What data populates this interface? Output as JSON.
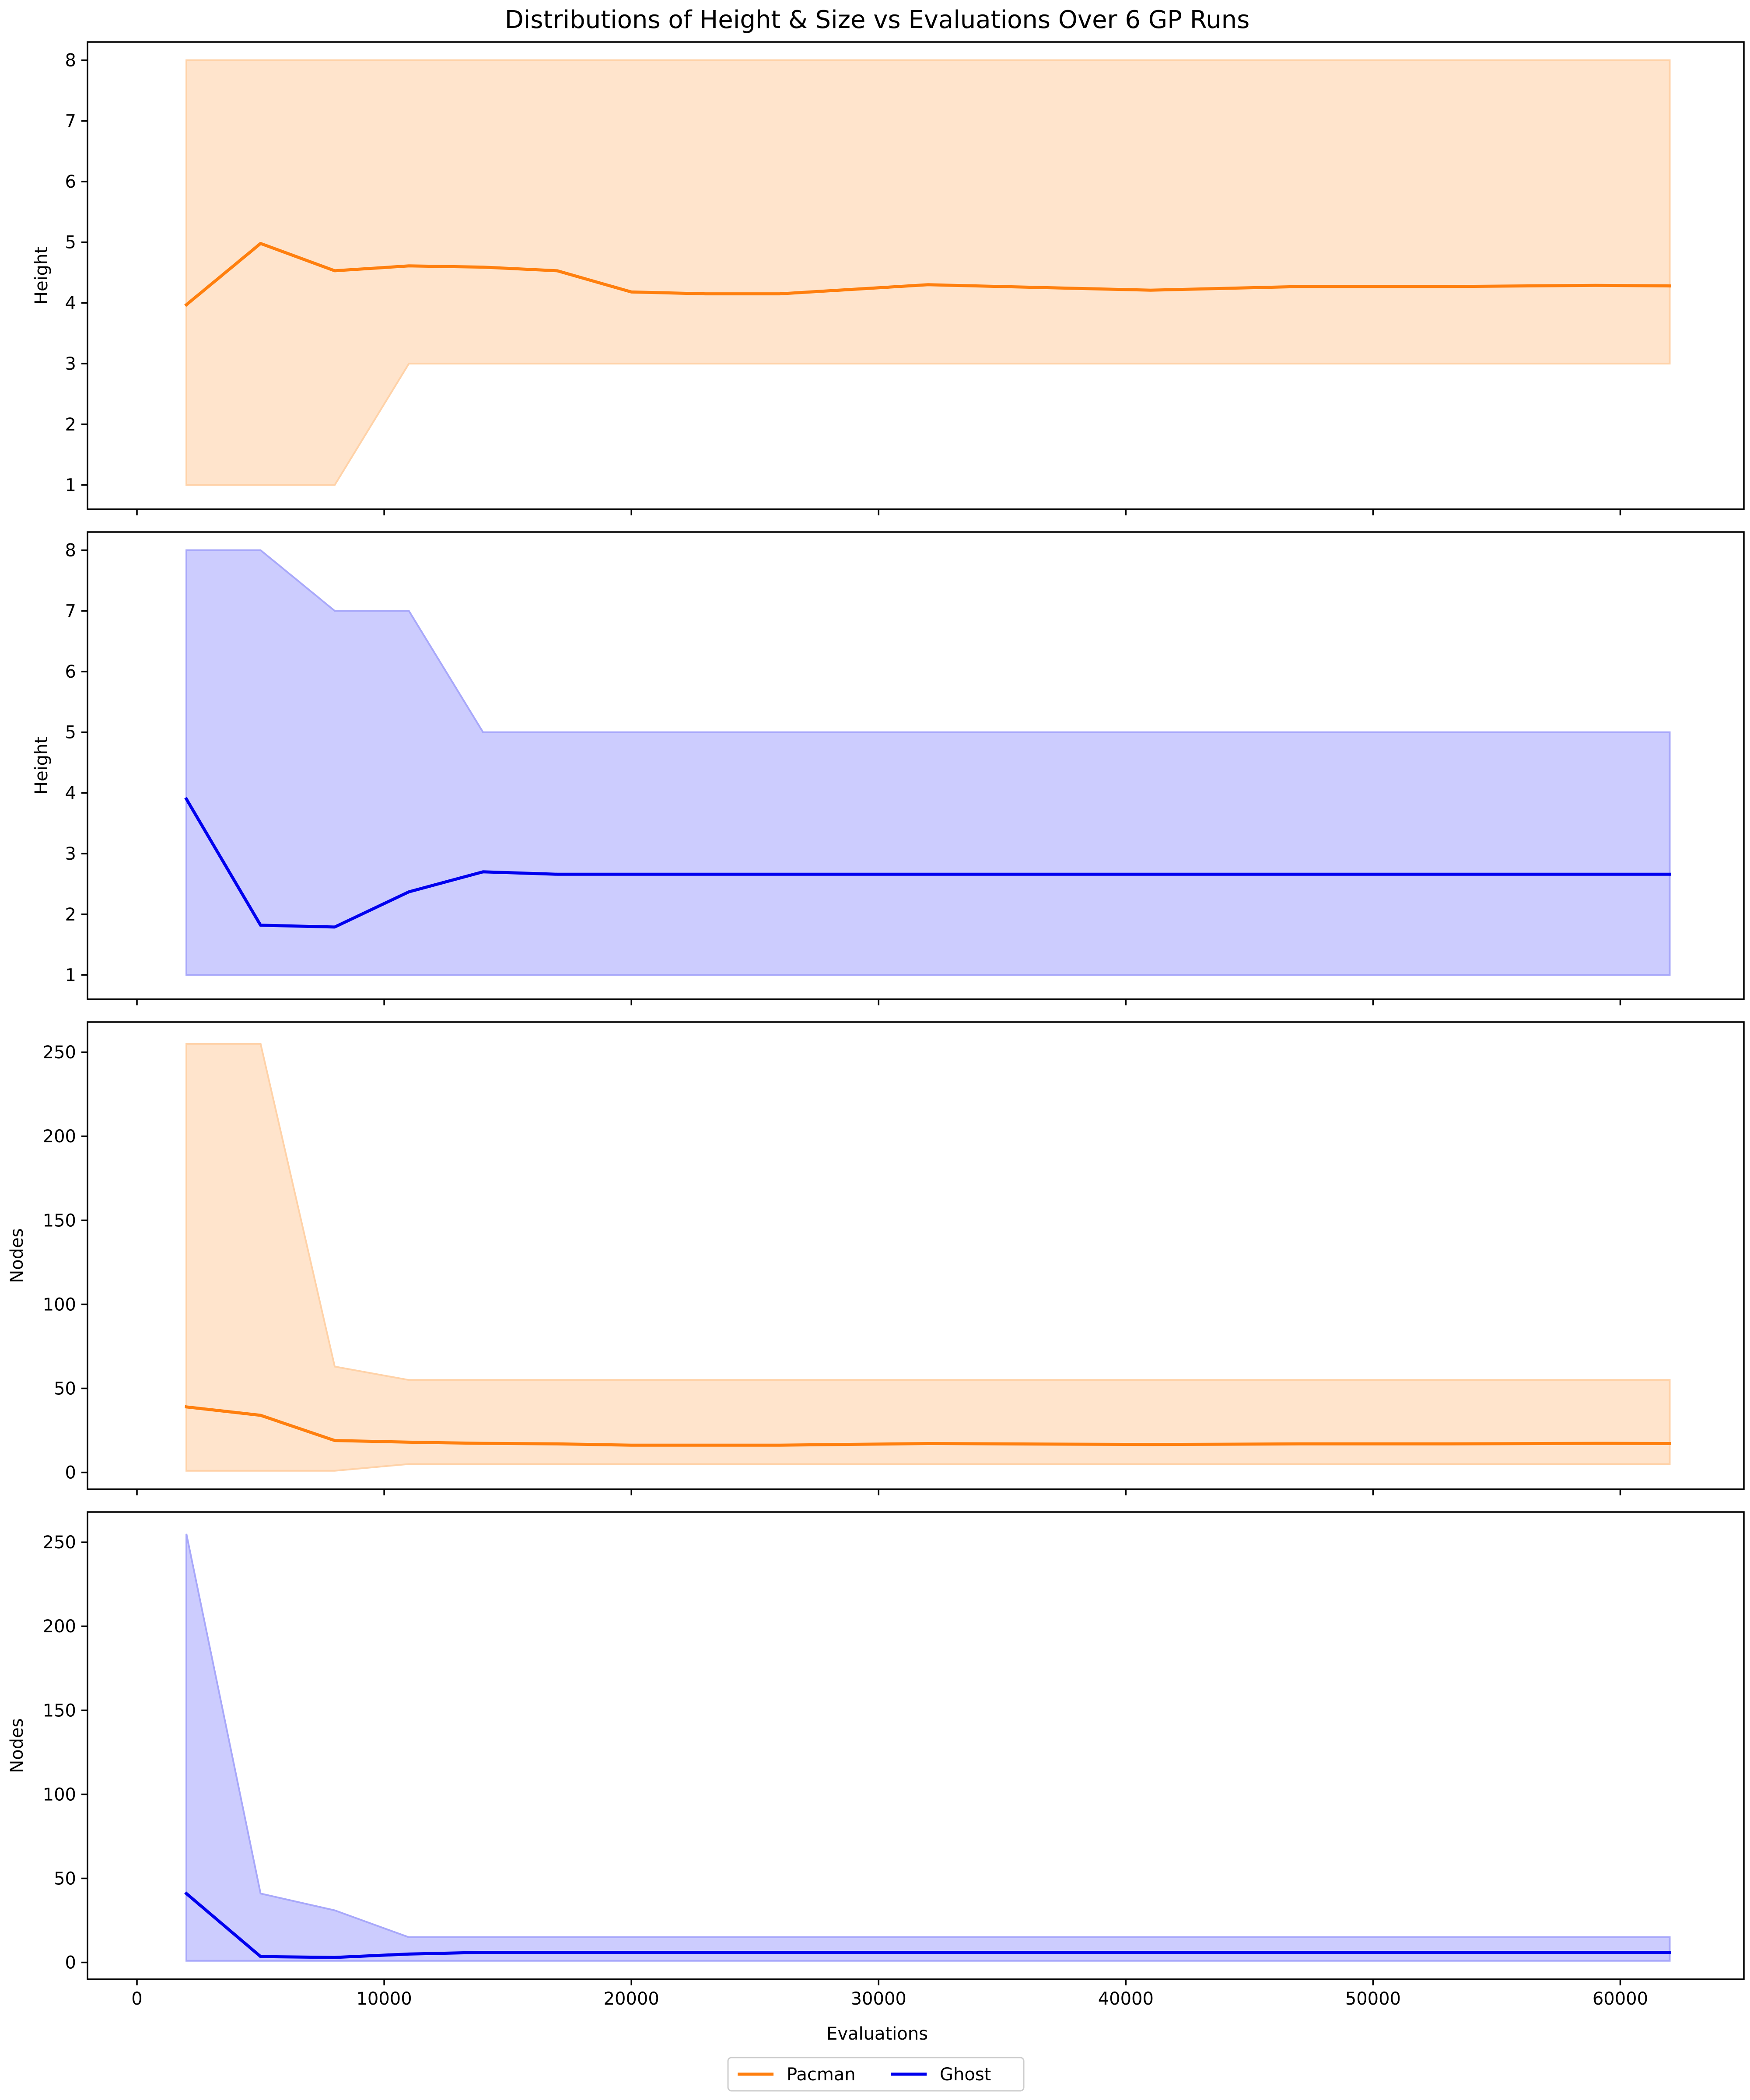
{
  "chart_data": {
    "type": "line",
    "title": "Distributions of Height & Size vs Evaluations Over 6 GP Runs",
    "xlabel": "Evaluations",
    "xlim": [
      -2000,
      65000
    ],
    "x_ticks": [
      0,
      10000,
      20000,
      30000,
      40000,
      50000,
      60000
    ],
    "legend": {
      "placement": "bottom-center",
      "entries": [
        {
          "name": "Pacman",
          "color": "#ff7f0e"
        },
        {
          "name": "Ghost",
          "color": "#0000ee"
        }
      ]
    },
    "panels": [
      {
        "ylabel": "Height",
        "ylim": [
          0.6,
          8.3
        ],
        "y_ticks": [
          1,
          2,
          3,
          4,
          5,
          6,
          7,
          8
        ],
        "series": "Pacman",
        "color": "#ff7f0e",
        "fill": "#ffe4cc",
        "fill_edge": "#ffd2a8",
        "x": [
          2000,
          5000,
          8000,
          11000,
          14000,
          17000,
          20000,
          23000,
          26000,
          32000,
          41000,
          47000,
          53000,
          59000,
          62000
        ],
        "mean": [
          3.97,
          4.98,
          4.53,
          4.61,
          4.59,
          4.53,
          4.18,
          4.15,
          4.15,
          4.3,
          4.21,
          4.27,
          4.27,
          4.29,
          4.28
        ],
        "min": [
          1,
          1,
          1,
          3,
          3,
          3,
          3,
          3,
          3,
          3,
          3,
          3,
          3,
          3,
          3
        ],
        "max": [
          8,
          8,
          8,
          8,
          8,
          8,
          8,
          8,
          8,
          8,
          8,
          8,
          8,
          8,
          8
        ]
      },
      {
        "ylabel": "Height",
        "ylim": [
          0.6,
          8.3
        ],
        "y_ticks": [
          1,
          2,
          3,
          4,
          5,
          6,
          7,
          8
        ],
        "series": "Ghost",
        "color": "#0000ee",
        "fill": "#ccccfe",
        "fill_edge": "#a8a8fa",
        "x": [
          2000,
          5000,
          8000,
          11000,
          14000,
          17000,
          20000,
          23000,
          26000,
          32000,
          41000,
          47000,
          53000,
          59000,
          62000
        ],
        "mean": [
          3.9,
          1.82,
          1.79,
          2.37,
          2.7,
          2.66,
          2.66,
          2.66,
          2.66,
          2.66,
          2.66,
          2.66,
          2.66,
          2.66,
          2.66
        ],
        "min": [
          1,
          1,
          1,
          1,
          1,
          1,
          1,
          1,
          1,
          1,
          1,
          1,
          1,
          1,
          1
        ],
        "max": [
          8,
          8,
          7,
          7,
          5,
          5,
          5,
          5,
          5,
          5,
          5,
          5,
          5,
          5,
          5
        ]
      },
      {
        "ylabel": "Nodes",
        "ylim": [
          -10,
          268
        ],
        "y_ticks": [
          0,
          50,
          100,
          150,
          200,
          250
        ],
        "series": "Pacman",
        "color": "#ff7f0e",
        "fill": "#ffe4cc",
        "fill_edge": "#ffd2a8",
        "x": [
          2000,
          5000,
          8000,
          11000,
          14000,
          17000,
          20000,
          23000,
          26000,
          32000,
          41000,
          47000,
          53000,
          59000,
          62000
        ],
        "mean": [
          39,
          34,
          19,
          18,
          17.3,
          17,
          16.2,
          16.2,
          16.2,
          17.2,
          16.6,
          17,
          17,
          17.3,
          17.2
        ],
        "min": [
          1,
          1,
          1,
          5,
          5,
          5,
          5,
          5,
          5,
          5,
          5,
          5,
          5,
          5,
          5
        ],
        "max": [
          255,
          255,
          63,
          55,
          55,
          55,
          55,
          55,
          55,
          55,
          55,
          55,
          55,
          55,
          55
        ]
      },
      {
        "ylabel": "Nodes",
        "ylim": [
          -10,
          268
        ],
        "y_ticks": [
          0,
          50,
          100,
          150,
          200,
          250
        ],
        "series": "Ghost",
        "color": "#0000ee",
        "fill": "#ccccfe",
        "fill_edge": "#a8a8fa",
        "x": [
          2000,
          5000,
          8000,
          11000,
          14000,
          17000,
          20000,
          23000,
          26000,
          32000,
          41000,
          47000,
          53000,
          59000,
          62000
        ],
        "mean": [
          41,
          3.5,
          3,
          5,
          6,
          6,
          6,
          6,
          6,
          6,
          6,
          6,
          6,
          6,
          6
        ],
        "min": [
          1,
          1,
          1,
          1,
          1,
          1,
          1,
          1,
          1,
          1,
          1,
          1,
          1,
          1,
          1
        ],
        "max": [
          255,
          41,
          31,
          15,
          15,
          15,
          15,
          15,
          15,
          15,
          15,
          15,
          15,
          15,
          15
        ]
      }
    ]
  }
}
